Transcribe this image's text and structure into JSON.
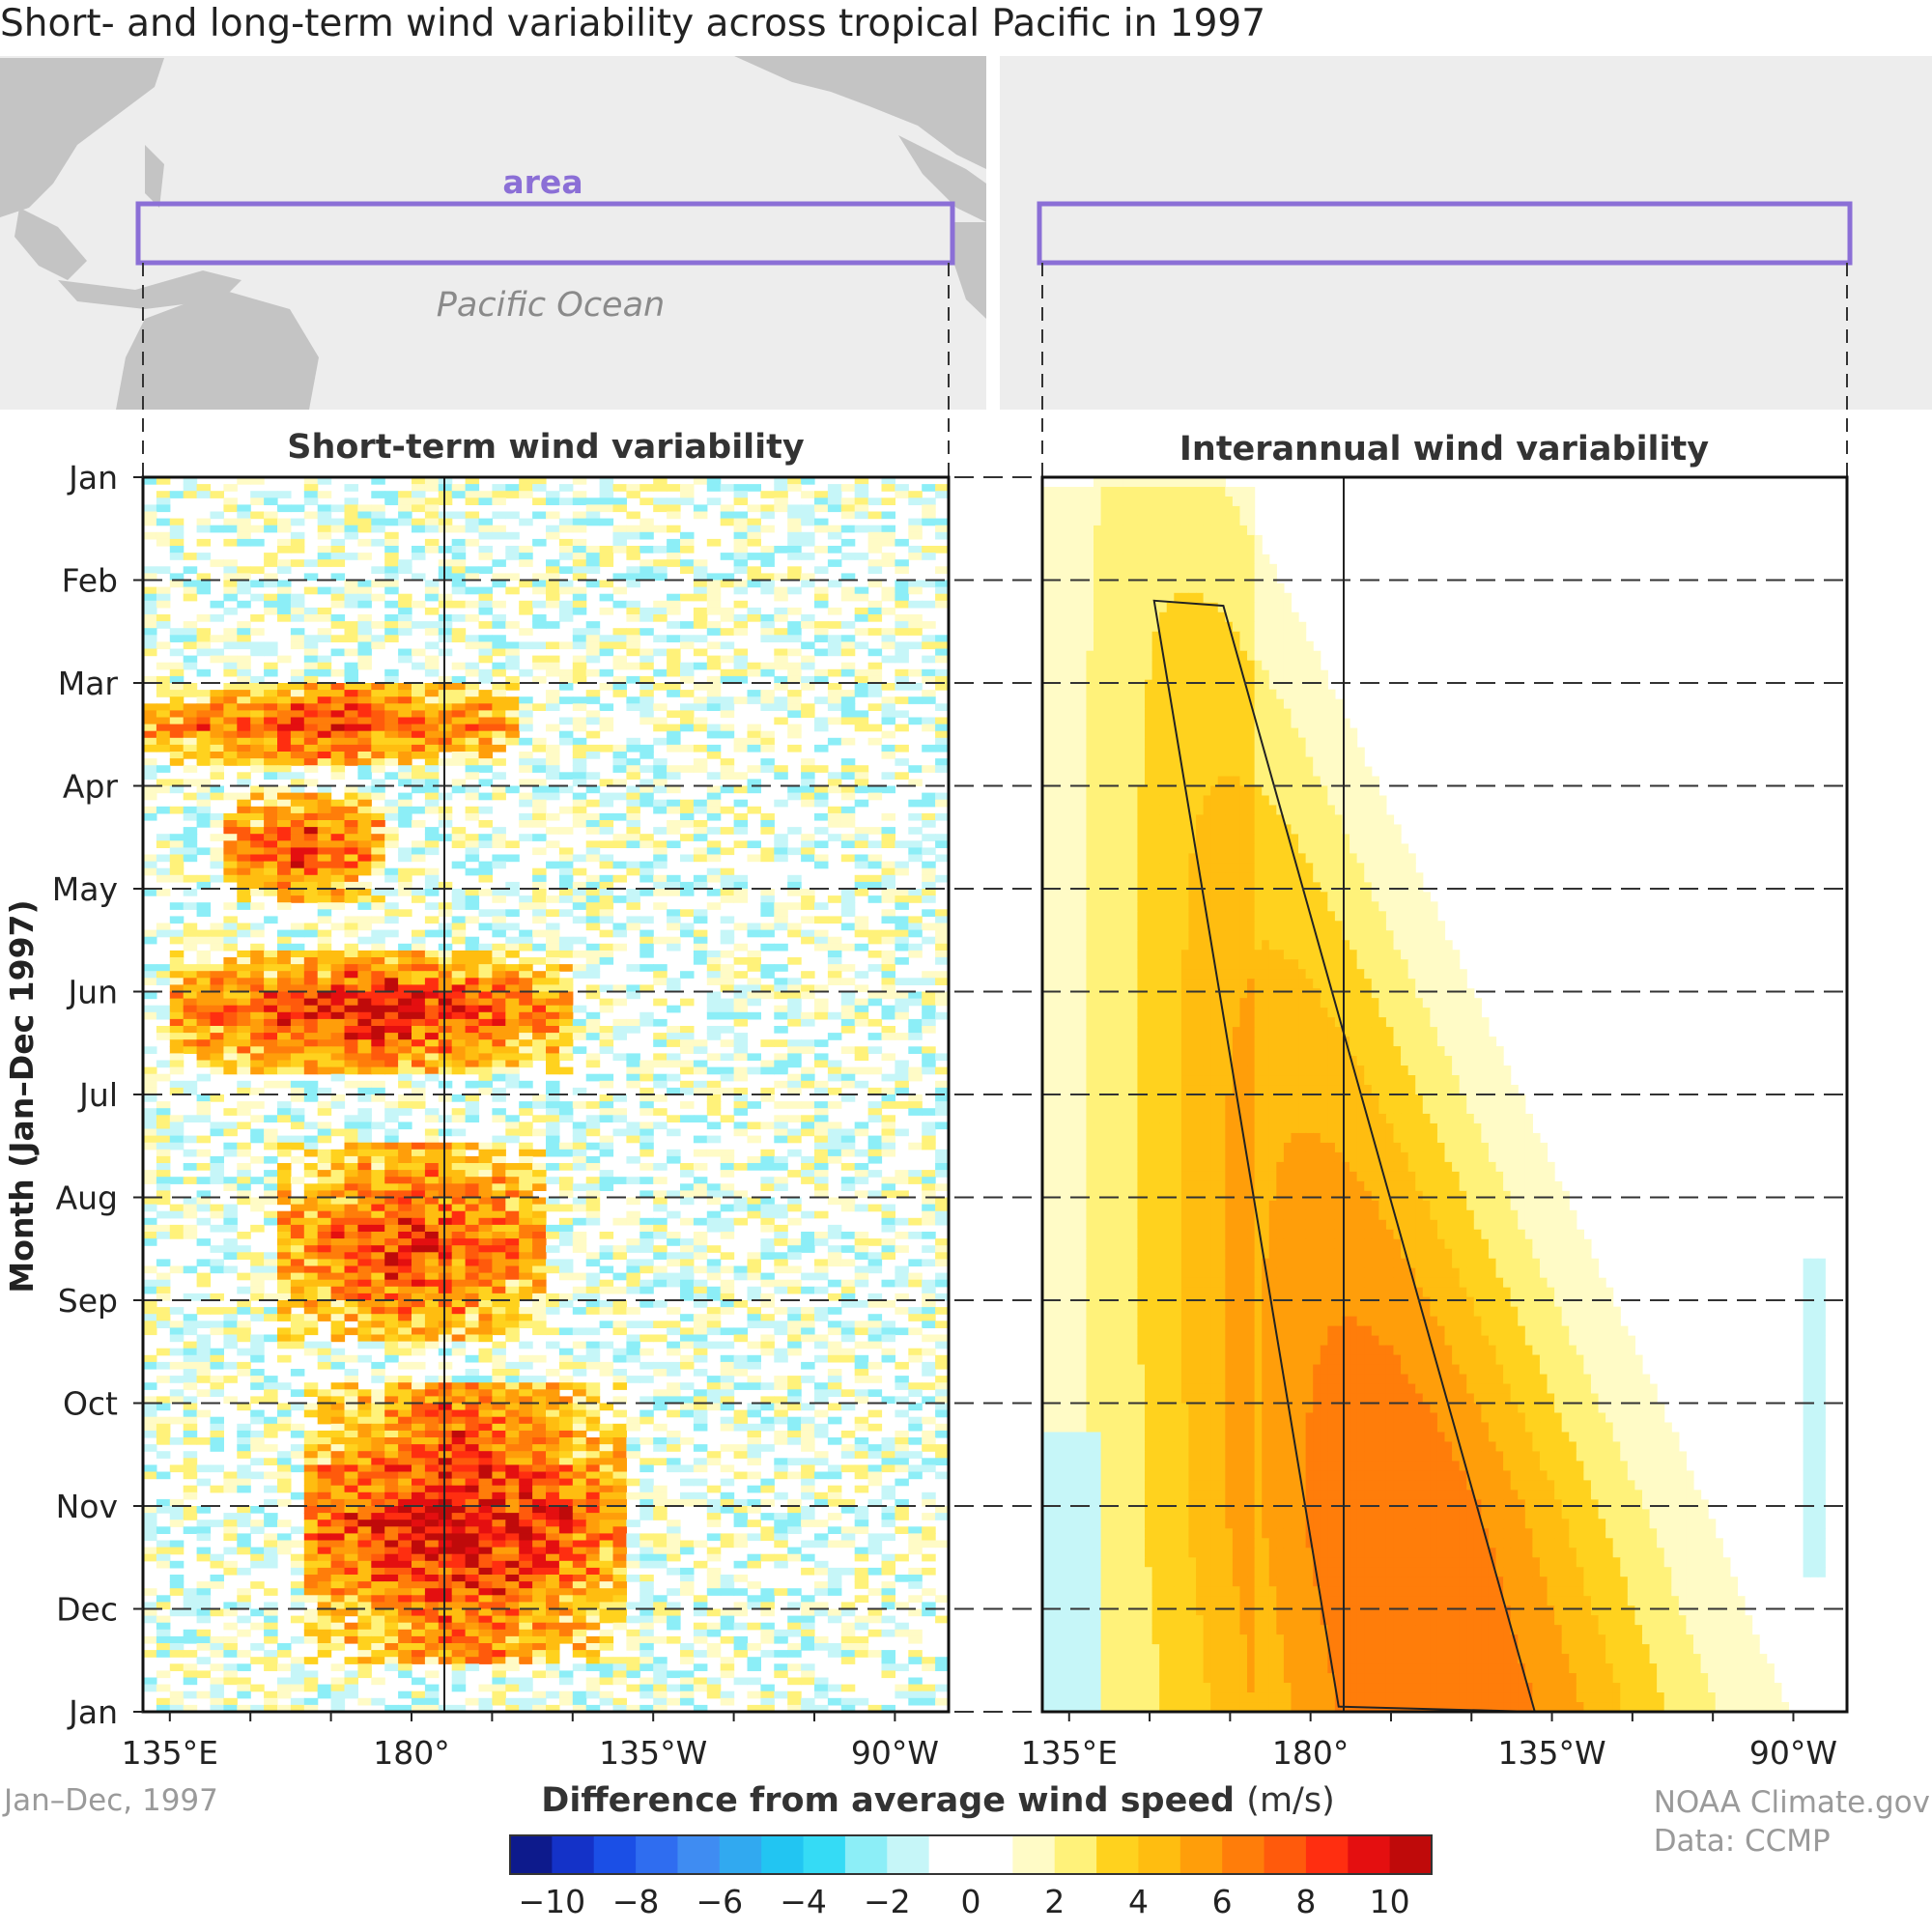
{
  "title": "Short- and long-term wind variability across tropical Pacific in 1997",
  "maps": {
    "area_label": "area",
    "ocean_label": "Pacific Ocean",
    "box_color": "#8b6fd6"
  },
  "footer": {
    "date_range": "Jan–Dec, 1997",
    "credit_line1": "NOAA Climate.gov",
    "credit_line2": "Data: CCMP"
  },
  "colorbar": {
    "title": "Difference from average wind speed",
    "unit": "(m/s)",
    "tick_labels": [
      "−10",
      "−8",
      "−6",
      "−4",
      "−2",
      "0",
      "2",
      "4",
      "6",
      "8",
      "10"
    ],
    "colors": [
      "#0d1a8c",
      "#1432c8",
      "#1b4fe6",
      "#2f6df0",
      "#3f8cf2",
      "#31a9f0",
      "#22c5f2",
      "#35dbf5",
      "#8ceef7",
      "#c6f6f8",
      "#ffffff",
      "#ffffff",
      "#fffbc6",
      "#fff27a",
      "#ffd21e",
      "#ffbd10",
      "#ff9e0a",
      "#ff7d0a",
      "#ff5a0c",
      "#ff2e10",
      "#e40f10",
      "#bf0a0a"
    ]
  },
  "chart_data": [
    {
      "type": "heatmap",
      "title": "Short-term wind variability",
      "ylabel": "Month (Jan–Dec 1997)",
      "y_ticks": [
        "Jan",
        "Feb",
        "Mar",
        "Apr",
        "May",
        "Jun",
        "Jul",
        "Aug",
        "Sep",
        "Oct",
        "Nov",
        "Dec",
        "Jan"
      ],
      "x_ticks": [
        "135°E",
        "180°",
        "135°W",
        "90°W"
      ],
      "x_range": "130°E–80°W",
      "color_range": [
        -10,
        10
      ],
      "features": [
        {
          "month_start": 2.0,
          "month_end": 2.8,
          "lon_range": "130°E–160°W",
          "max_anomaly": 8
        },
        {
          "month_start": 3.1,
          "month_end": 4.1,
          "lon_range": "145°E–175°E",
          "max_anomaly": 8
        },
        {
          "month_start": 4.6,
          "month_end": 5.8,
          "lon_range": "135°E–150°W",
          "max_anomaly": 9
        },
        {
          "month_start": 6.5,
          "month_end": 8.4,
          "lon_range": "155°E–155°W",
          "max_anomaly": 8
        },
        {
          "month_start": 8.8,
          "month_end": 11.5,
          "lon_range": "160°E–140°W",
          "max_anomaly": 10
        }
      ]
    },
    {
      "type": "heatmap",
      "title": "Interannual wind variability",
      "x_ticks": [
        "135°E",
        "180°",
        "135°W",
        "90°W"
      ],
      "y_ticks": [
        "Jan",
        "Feb",
        "Mar",
        "Apr",
        "May",
        "Jun",
        "Jul",
        "Aug",
        "Sep",
        "Oct",
        "Nov",
        "Dec",
        "Jan"
      ],
      "color_range": [
        -10,
        10
      ],
      "features": [
        {
          "description": "anomaly band shifts east from ~150°E in Feb to ~145°W by Dec",
          "max_anomaly": 7
        }
      ]
    }
  ]
}
